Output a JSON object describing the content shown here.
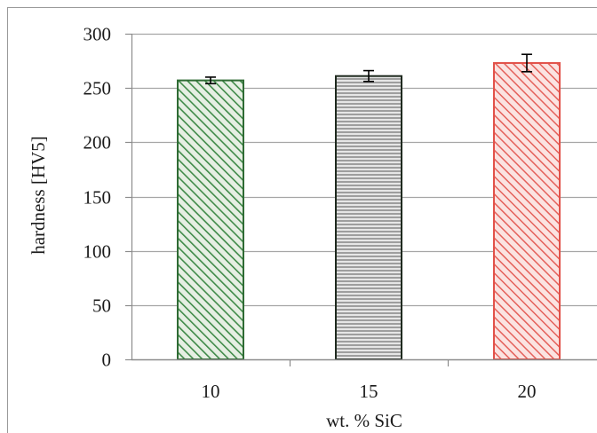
{
  "chart_data": {
    "type": "bar",
    "categories": [
      "10",
      "15",
      "20"
    ],
    "values": [
      257,
      261,
      273
    ],
    "error_bars": [
      3,
      5,
      8
    ],
    "title": "",
    "xlabel": "wt. % SiC",
    "ylabel": "hardness [HV5]",
    "ylim": [
      0,
      300
    ],
    "yticks": [
      "0",
      "50",
      "100",
      "150",
      "200",
      "250",
      "300"
    ],
    "ytick_values": [
      0,
      50,
      100,
      150,
      200,
      250,
      300
    ],
    "grid": "horizontal",
    "legend": "none",
    "bar_colors": [
      {
        "stroke": "#2f6b34",
        "hatch": "#3f8a48",
        "fill": "#e6efe3",
        "pattern": "diagonal"
      },
      {
        "stroke": "#1f2a1f",
        "hatch": "#8c8c8c",
        "fill": "#e6e6e6",
        "pattern": "horizontal"
      },
      {
        "stroke": "#e2524a",
        "hatch": "#e4605a",
        "fill": "#fbe3e1",
        "pattern": "diagonal"
      }
    ],
    "gridline_color": "#a6a6a6",
    "axis_color": "#8c8c8c"
  }
}
